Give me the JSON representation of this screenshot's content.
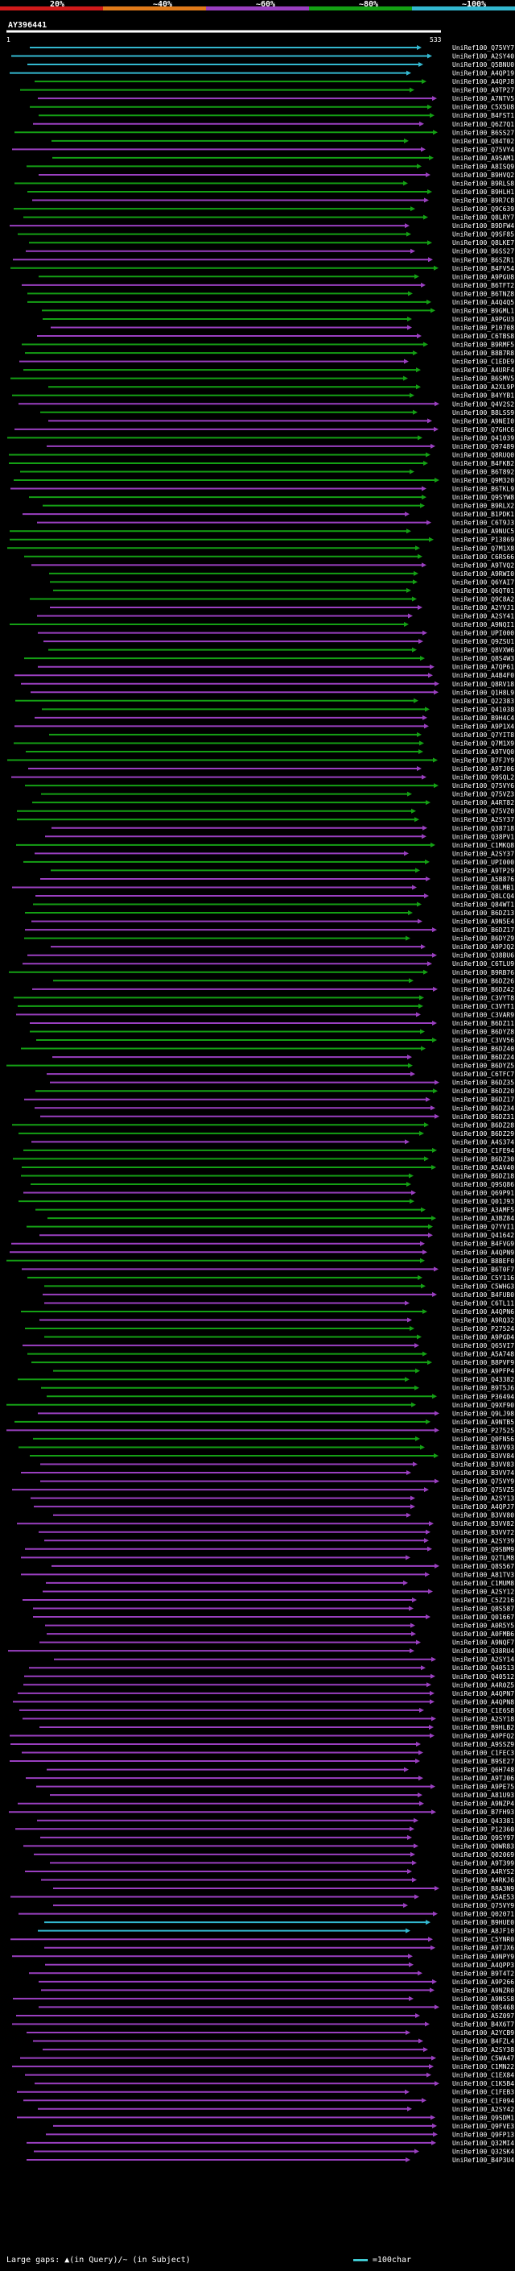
{
  "scale": {
    "labels": [
      "20%",
      "~40%",
      "~60%",
      "~80%",
      "~100%"
    ],
    "colors": [
      "#d01a1a",
      "#e07a1a",
      "#9a3fc0",
      "#14a014",
      "#33b8d0"
    ]
  },
  "query": {
    "name": "AY396441",
    "start": "1",
    "end": "533"
  },
  "footer": {
    "text": "Large gaps: ▲(in Query)/~ (in Subject)",
    "legend": "=100char"
  },
  "chart_data": {
    "type": "alignment",
    "query_length": 533,
    "hits": [
      "UniRef100_Q75VY7",
      "UniRef100_A2SY40",
      "UniRef100_Q5BNU0",
      "UniRef100_A4QP19",
      "UniRef100_A4QPJ8",
      "UniRef100_A9TP27",
      "UniRef100_A7NTV5",
      "UniRef100_C5X5U8",
      "UniRef100_B4FST1",
      "UniRef100_Q6Z7Q1",
      "UniRef100_B6SS27",
      "UniRef100_Q84T02",
      "UniRef100_Q75VY4",
      "UniRef100_A9SAM1",
      "UniRef100_A8ISQ9",
      "UniRef100_B9HVQ2",
      "UniRef100_B9RLS8",
      "UniRef100_B9HLH1",
      "UniRef100_B9R7C8",
      "UniRef100_Q9C639",
      "UniRef100_Q8LRY7",
      "UniRef100_B9DFW4",
      "UniRef100_Q9SF85",
      "UniRef100_Q8LKE7",
      "UniRef100_B6SS27",
      "UniRef100_B6SZR1",
      "UniRef100_B4FV54",
      "UniRef100_A9PGU8",
      "UniRef100_B6TFT2",
      "UniRef100_B6TNZ8",
      "UniRef100_A4Q4Q5",
      "UniRef100_B9GML1",
      "UniRef100_A9PGU3",
      "UniRef100_P10708",
      "UniRef100_C6TBS8",
      "UniRef100_B9RMF5",
      "UniRef100_B8B7R8",
      "UniRef100_C1EDE9",
      "UniRef100_A4URF4",
      "UniRef100_B6SMV5",
      "UniRef100_A2XL9P",
      "UniRef100_B4YYB1",
      "UniRef100_Q4V2S2",
      "UniRef100_B8LSS9",
      "UniRef100_A9NEI0",
      "UniRef100_Q7GHC6",
      "UniRef100_Q41039",
      "UniRef100_Q97489",
      "UniRef100_Q8RUQ0",
      "UniRef100_B4FKB2",
      "UniRef100_B6T892",
      "UniRef100_Q9M320",
      "UniRef100_B6TKL9",
      "UniRef100_Q9SYW8",
      "UniRef100_B9RLX2",
      "UniRef100_B1PDK1",
      "UniRef100_C6T9J3",
      "UniRef100_A9NUC5",
      "UniRef100_P13869",
      "UniRef100_Q7M1X8",
      "UniRef100_C6RS66",
      "UniRef100_A9TVQ2",
      "UniRef100_A9RWI0",
      "UniRef100_Q6YAI7",
      "UniRef100_Q6QT01",
      "UniRef100_Q9C8A2",
      "UniRef100_A2YVJ1",
      "UniRef100_A2SY41",
      "UniRef100_A9NQI1",
      "UniRef100_UPI000...",
      "UniRef100_Q9ZSU1",
      "UniRef100_Q8VXW6",
      "UniRef100_Q8S4W3",
      "UniRef100_A7QP61",
      "UniRef100_A4B4F0",
      "UniRef100_Q8RV18",
      "UniRef100_Q1H8L9",
      "UniRef100_Q22383",
      "UniRef100_Q41038",
      "UniRef100_B9H4C4",
      "UniRef100_A9P1X4",
      "UniRef100_Q7YIT8",
      "UniRef100_Q7M1X9",
      "UniRef100_A9TVQ0",
      "UniRef100_B7FJY9",
      "UniRef100_A9TJ06",
      "UniRef100_Q9SQL2",
      "UniRef100_Q75VY6",
      "UniRef100_Q75VZ3",
      "UniRef100_A4RT82",
      "UniRef100_Q75VZ0",
      "UniRef100_A2SY37",
      "UniRef100_Q38718",
      "UniRef100_Q38PV1",
      "UniRef100_C1MKQ8",
      "UniRef100_A2SY37",
      "UniRef100_UPI000...",
      "UniRef100_A9TP29",
      "UniRef100_A5B876",
      "UniRef100_Q8LMB1",
      "UniRef100_Q8LCQ4",
      "UniRef100_Q84WT1",
      "UniRef100_B6DZ13",
      "UniRef100_A9N5E4",
      "UniRef100_B6DZ17",
      "UniRef100_B6DYZ9",
      "UniRef100_A9PJQ2",
      "UniRef100_Q38BU6",
      "UniRef100_C6TLU9",
      "UniRef100_B9RB76",
      "UniRef100_B6DZ26",
      "UniRef100_B6DZ42",
      "UniRef100_C3VYT8",
      "UniRef100_C3VYT1",
      "UniRef100_C3VAR9",
      "UniRef100_B6DZ11",
      "UniRef100_B6DYZ8",
      "UniRef100_C3VV56",
      "UniRef100_B6DZ40",
      "UniRef100_B6DZ24",
      "UniRef100_B6DYZ5",
      "UniRef100_C6TFC7",
      "UniRef100_B6DZ35",
      "UniRef100_B6DZ20",
      "UniRef100_B6DZ17",
      "UniRef100_B6DZ34",
      "UniRef100_B6DZ31",
      "UniRef100_B6DZ28",
      "UniRef100_B6DZ29",
      "UniRef100_A4S374",
      "UniRef100_C1FE94",
      "UniRef100_B6DZ30",
      "UniRef100_A5AV40",
      "UniRef100_B6DZ18",
      "UniRef100_Q9SQ86",
      "UniRef100_Q69P91",
      "UniRef100_Q01J93",
      "UniRef100_A3AMF5",
      "UniRef100_A3BZ84",
      "UniRef100_Q7YVI1",
      "UniRef100_Q41642",
      "UniRef100_B4FVG9",
      "UniRef100_A4QPN9",
      "UniRef100_B8BEF0",
      "UniRef100_B6T0F7",
      "UniRef100_C5Y116",
      "UniRef100_C5WHG3",
      "UniRef100_B4FUB0",
      "UniRef100_C6TL11",
      "UniRef100_A4QPN6",
      "UniRef100_A9RQ32",
      "UniRef100_P27524",
      "UniRef100_A9PGD4",
      "UniRef100_Q65VI7",
      "UniRef100_A5A748",
      "UniRef100_B8PVF9",
      "UniRef100_A9PFP4",
      "UniRef100_Q43382",
      "UniRef100_B9T5J6",
      "UniRef100_P36494",
      "UniRef100_Q9XF90",
      "UniRef100_Q9LJ98",
      "UniRef100_A9NTB5",
      "UniRef100_P27525",
      "UniRef100_Q0FN56",
      "UniRef100_B3VV93",
      "UniRef100_B3VV84",
      "UniRef100_B3VV83",
      "UniRef100_B3VV74",
      "UniRef100_Q75VY9",
      "UniRef100_Q75VZ5",
      "UniRef100_A2SY13",
      "UniRef100_A4QPJ7",
      "UniRef100_B3VV80",
      "UniRef100_B3VV82",
      "UniRef100_B3VV72",
      "UniRef100_A2SY39",
      "UniRef100_Q9SBM9",
      "UniRef100_Q2TLM8",
      "UniRef100_Q8S567",
      "UniRef100_A81TV3",
      "UniRef100_C1MUM8",
      "UniRef100_A2SY12",
      "UniRef100_C5Z216",
      "UniRef100_Q8S587",
      "UniRef100_Q01667",
      "UniRef100_A0R5Y5",
      "UniRef100_A0FMB6",
      "UniRef100_A9NQF7",
      "UniRef100_Q38RU4",
      "UniRef100_A2SY14",
      "UniRef100_Q40513",
      "UniRef100_Q40512",
      "UniRef100_A4R0Z5",
      "UniRef100_A4QPN7",
      "UniRef100_A4QPN8",
      "UniRef100_C1E6S8",
      "UniRef100_A2SY18",
      "UniRef100_B9HLB2",
      "UniRef100_A9PFQ2",
      "UniRef100_A9SSZ9",
      "UniRef100_C1FEC3",
      "UniRef100_B9SE27",
      "UniRef100_Q6H748",
      "UniRef100_A9TJ06",
      "UniRef100_A9PE75",
      "UniRef100_A81U93",
      "UniRef100_A9NZP4",
      "UniRef100_B7FH93",
      "UniRef100_Q43381",
      "UniRef100_P12360",
      "UniRef100_Q9SY97",
      "UniRef100_Q0WR83",
      "UniRef100_Q02069",
      "UniRef100_A9T399",
      "UniRef100_A4RYS2",
      "UniRef100_A4RKJ6",
      "UniRef100_B8A3N9",
      "UniRef100_A5AE53",
      "UniRef100_Q75VY9",
      "UniRef100_Q02071",
      "UniRef100_B9HUE0",
      "UniRef100_A8JF10",
      "UniRef100_C5YNR0",
      "UniRef100_A9TJX6",
      "UniRef100_A9NPY9",
      "UniRef100_A4QPP3",
      "UniRef100_B9T4T2",
      "UniRef100_A9P266",
      "UniRef100_A9NZR0",
      "UniRef100_A9NSS8",
      "UniRef100_Q8S468",
      "UniRef100_A5Z097",
      "UniRef100_B4X6T7",
      "UniRef100_A2YCB9",
      "UniRef100_B4FZL4",
      "UniRef100_A2SY38",
      "UniRef100_C5WA47",
      "UniRef100_C1MN22",
      "UniRef100_C1EX84",
      "UniRef100_C1K5B4",
      "UniRef100_C1FEB3",
      "UniRef100_C1F094",
      "UniRef100_A2SY42",
      "UniRef100_Q9SDM1",
      "UniRef100_Q9FVE3",
      "UniRef100_Q9FP13",
      "UniRef100_Q32MI4",
      "UniRef100_Q32SK4",
      "UniRef100_B4P3U4"
    ]
  }
}
